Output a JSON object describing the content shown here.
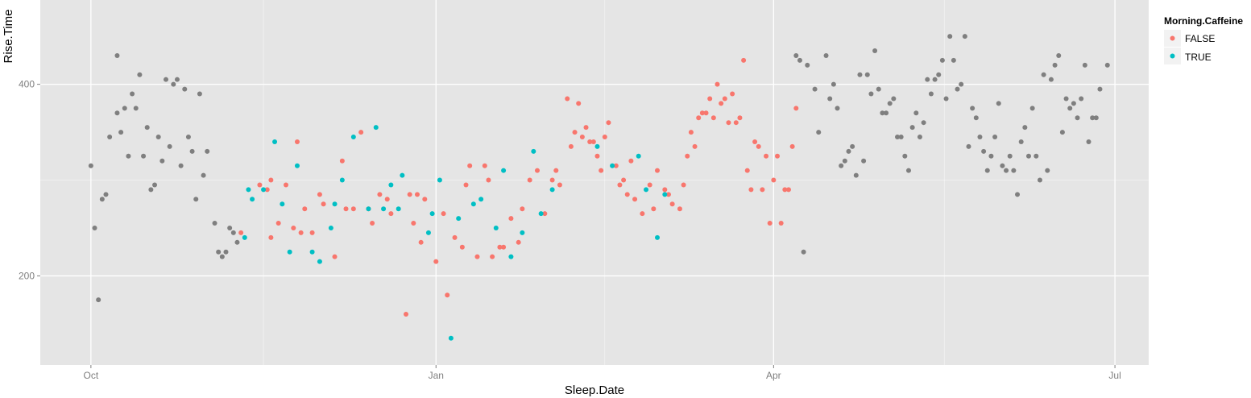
{
  "chart_data": {
    "type": "scatter",
    "xlabel": "Sleep.Date",
    "ylabel": "Rise.Time",
    "x_ticks": [
      {
        "label": "Oct",
        "day": 0
      },
      {
        "label": "Jan",
        "day": 92
      },
      {
        "label": "Apr",
        "day": 182
      },
      {
        "label": "Jul",
        "day": 273
      }
    ],
    "y_ticks": [
      200,
      400
    ],
    "xlim": [
      -13.5,
      282
    ],
    "ylim": [
      107,
      488
    ],
    "grid": true,
    "legend": {
      "title": "Morning.Caffeine",
      "position": "right",
      "entries": [
        {
          "label": "FALSE",
          "color": "#F8766D"
        },
        {
          "label": "TRUE",
          "color": "#00BFC4"
        }
      ]
    },
    "colors": {
      "FALSE": "#F8766D",
      "TRUE": "#00BFC4",
      "NA": "#7F7F7F",
      "panel": "#E5E5E5",
      "grid": "#FFFFFF"
    },
    "series": [
      {
        "group": "NA",
        "points": [
          [
            0,
            315
          ],
          [
            1,
            250
          ],
          [
            2,
            175
          ],
          [
            3,
            280
          ],
          [
            4,
            285
          ],
          [
            5,
            345
          ],
          [
            7,
            430
          ],
          [
            7,
            370
          ],
          [
            8,
            350
          ],
          [
            9,
            375
          ],
          [
            10,
            325
          ],
          [
            11,
            390
          ],
          [
            12,
            375
          ],
          [
            13,
            410
          ],
          [
            14,
            325
          ],
          [
            15,
            355
          ],
          [
            16,
            290
          ],
          [
            17,
            295
          ],
          [
            18,
            345
          ],
          [
            19,
            320
          ],
          [
            20,
            405
          ],
          [
            21,
            335
          ],
          [
            22,
            400
          ],
          [
            23,
            405
          ],
          [
            24,
            315
          ],
          [
            25,
            395
          ],
          [
            26,
            345
          ],
          [
            27,
            330
          ],
          [
            28,
            280
          ],
          [
            29,
            390
          ],
          [
            30,
            305
          ],
          [
            31,
            330
          ],
          [
            33,
            255
          ],
          [
            34,
            225
          ],
          [
            35,
            220
          ],
          [
            36,
            225
          ],
          [
            37,
            250
          ],
          [
            38,
            245
          ],
          [
            39,
            235
          ],
          [
            188,
            430
          ],
          [
            189,
            425
          ],
          [
            190,
            225
          ],
          [
            191,
            420
          ],
          [
            193,
            395
          ],
          [
            194,
            350
          ],
          [
            196,
            430
          ],
          [
            197,
            385
          ],
          [
            198,
            400
          ],
          [
            199,
            375
          ],
          [
            200,
            315
          ],
          [
            201,
            320
          ],
          [
            202,
            330
          ],
          [
            203,
            335
          ],
          [
            204,
            305
          ],
          [
            205,
            410
          ],
          [
            206,
            320
          ],
          [
            207,
            410
          ],
          [
            208,
            390
          ],
          [
            209,
            435
          ],
          [
            210,
            395
          ],
          [
            211,
            370
          ],
          [
            212,
            370
          ],
          [
            213,
            380
          ],
          [
            214,
            385
          ],
          [
            215,
            345
          ],
          [
            216,
            345
          ],
          [
            217,
            325
          ],
          [
            218,
            310
          ],
          [
            219,
            355
          ],
          [
            220,
            370
          ],
          [
            221,
            345
          ],
          [
            222,
            360
          ],
          [
            223,
            405
          ],
          [
            224,
            390
          ],
          [
            225,
            405
          ],
          [
            226,
            410
          ],
          [
            227,
            425
          ],
          [
            228,
            385
          ],
          [
            229,
            450
          ],
          [
            230,
            425
          ],
          [
            231,
            395
          ],
          [
            232,
            400
          ],
          [
            233,
            450
          ],
          [
            234,
            335
          ],
          [
            235,
            375
          ],
          [
            236,
            365
          ],
          [
            237,
            345
          ],
          [
            238,
            330
          ],
          [
            239,
            310
          ],
          [
            240,
            325
          ],
          [
            241,
            345
          ],
          [
            242,
            380
          ],
          [
            243,
            315
          ],
          [
            244,
            310
          ],
          [
            245,
            325
          ],
          [
            246,
            310
          ],
          [
            247,
            285
          ],
          [
            248,
            340
          ],
          [
            249,
            355
          ],
          [
            250,
            325
          ],
          [
            251,
            375
          ],
          [
            252,
            325
          ],
          [
            253,
            300
          ],
          [
            254,
            410
          ],
          [
            255,
            310
          ],
          [
            256,
            405
          ],
          [
            257,
            420
          ],
          [
            258,
            430
          ],
          [
            259,
            350
          ],
          [
            260,
            385
          ],
          [
            261,
            375
          ],
          [
            262,
            380
          ],
          [
            263,
            365
          ],
          [
            264,
            385
          ],
          [
            265,
            420
          ],
          [
            266,
            340
          ],
          [
            267,
            365
          ],
          [
            268,
            365
          ],
          [
            269,
            395
          ],
          [
            271,
            420
          ]
        ]
      },
      {
        "group": "FALSE",
        "points": [
          [
            40,
            245
          ],
          [
            45,
            295
          ],
          [
            47,
            290
          ],
          [
            48,
            300
          ],
          [
            48,
            240
          ],
          [
            50,
            255
          ],
          [
            52,
            295
          ],
          [
            54,
            250
          ],
          [
            55,
            340
          ],
          [
            56,
            245
          ],
          [
            57,
            270
          ],
          [
            59,
            245
          ],
          [
            61,
            285
          ],
          [
            62,
            275
          ],
          [
            65,
            220
          ],
          [
            67,
            320
          ],
          [
            68,
            270
          ],
          [
            70,
            270
          ],
          [
            72,
            350
          ],
          [
            74,
            270
          ],
          [
            75,
            255
          ],
          [
            77,
            285
          ],
          [
            79,
            280
          ],
          [
            80,
            265
          ],
          [
            84,
            160
          ],
          [
            85,
            285
          ],
          [
            86,
            255
          ],
          [
            87,
            285
          ],
          [
            88,
            235
          ],
          [
            89,
            280
          ],
          [
            92,
            215
          ],
          [
            94,
            265
          ],
          [
            95,
            180
          ],
          [
            97,
            240
          ],
          [
            99,
            230
          ],
          [
            100,
            295
          ],
          [
            101,
            315
          ],
          [
            103,
            220
          ],
          [
            105,
            315
          ],
          [
            106,
            300
          ],
          [
            107,
            220
          ],
          [
            109,
            230
          ],
          [
            110,
            230
          ],
          [
            112,
            260
          ],
          [
            114,
            235
          ],
          [
            115,
            270
          ],
          [
            117,
            300
          ],
          [
            119,
            310
          ],
          [
            121,
            265
          ],
          [
            123,
            300
          ],
          [
            124,
            310
          ],
          [
            125,
            295
          ],
          [
            127,
            385
          ],
          [
            128,
            335
          ],
          [
            129,
            350
          ],
          [
            130,
            380
          ],
          [
            131,
            345
          ],
          [
            132,
            355
          ],
          [
            133,
            340
          ],
          [
            134,
            340
          ],
          [
            135,
            325
          ],
          [
            136,
            310
          ],
          [
            137,
            345
          ],
          [
            138,
            360
          ],
          [
            140,
            315
          ],
          [
            141,
            295
          ],
          [
            142,
            300
          ],
          [
            143,
            285
          ],
          [
            144,
            320
          ],
          [
            145,
            280
          ],
          [
            147,
            265
          ],
          [
            149,
            295
          ],
          [
            150,
            270
          ],
          [
            151,
            310
          ],
          [
            153,
            290
          ],
          [
            154,
            285
          ],
          [
            155,
            275
          ],
          [
            157,
            270
          ],
          [
            158,
            295
          ],
          [
            159,
            325
          ],
          [
            160,
            350
          ],
          [
            161,
            335
          ],
          [
            162,
            365
          ],
          [
            163,
            370
          ],
          [
            164,
            370
          ],
          [
            165,
            385
          ],
          [
            166,
            365
          ],
          [
            167,
            400
          ],
          [
            168,
            380
          ],
          [
            169,
            385
          ],
          [
            170,
            360
          ],
          [
            171,
            390
          ],
          [
            172,
            360
          ],
          [
            173,
            365
          ],
          [
            174,
            425
          ],
          [
            175,
            310
          ],
          [
            176,
            290
          ],
          [
            177,
            340
          ],
          [
            178,
            335
          ],
          [
            179,
            290
          ],
          [
            180,
            325
          ],
          [
            181,
            255
          ],
          [
            182,
            300
          ],
          [
            183,
            325
          ],
          [
            184,
            255
          ],
          [
            185,
            290
          ],
          [
            186,
            290
          ],
          [
            187,
            335
          ],
          [
            188,
            375
          ]
        ]
      },
      {
        "group": "TRUE",
        "points": [
          [
            41,
            240
          ],
          [
            42,
            290
          ],
          [
            43,
            280
          ],
          [
            46,
            290
          ],
          [
            49,
            340
          ],
          [
            51,
            275
          ],
          [
            53,
            225
          ],
          [
            55,
            315
          ],
          [
            59,
            225
          ],
          [
            61,
            215
          ],
          [
            64,
            250
          ],
          [
            65,
            275
          ],
          [
            67,
            300
          ],
          [
            70,
            345
          ],
          [
            74,
            270
          ],
          [
            76,
            355
          ],
          [
            78,
            270
          ],
          [
            80,
            295
          ],
          [
            82,
            270
          ],
          [
            83,
            305
          ],
          [
            90,
            245
          ],
          [
            91,
            265
          ],
          [
            93,
            300
          ],
          [
            96,
            135
          ],
          [
            98,
            260
          ],
          [
            102,
            275
          ],
          [
            104,
            280
          ],
          [
            108,
            250
          ],
          [
            110,
            310
          ],
          [
            112,
            220
          ],
          [
            115,
            245
          ],
          [
            118,
            330
          ],
          [
            120,
            265
          ],
          [
            123,
            290
          ],
          [
            135,
            335
          ],
          [
            139,
            315
          ],
          [
            146,
            325
          ],
          [
            148,
            290
          ],
          [
            151,
            240
          ],
          [
            153,
            285
          ]
        ]
      }
    ]
  }
}
